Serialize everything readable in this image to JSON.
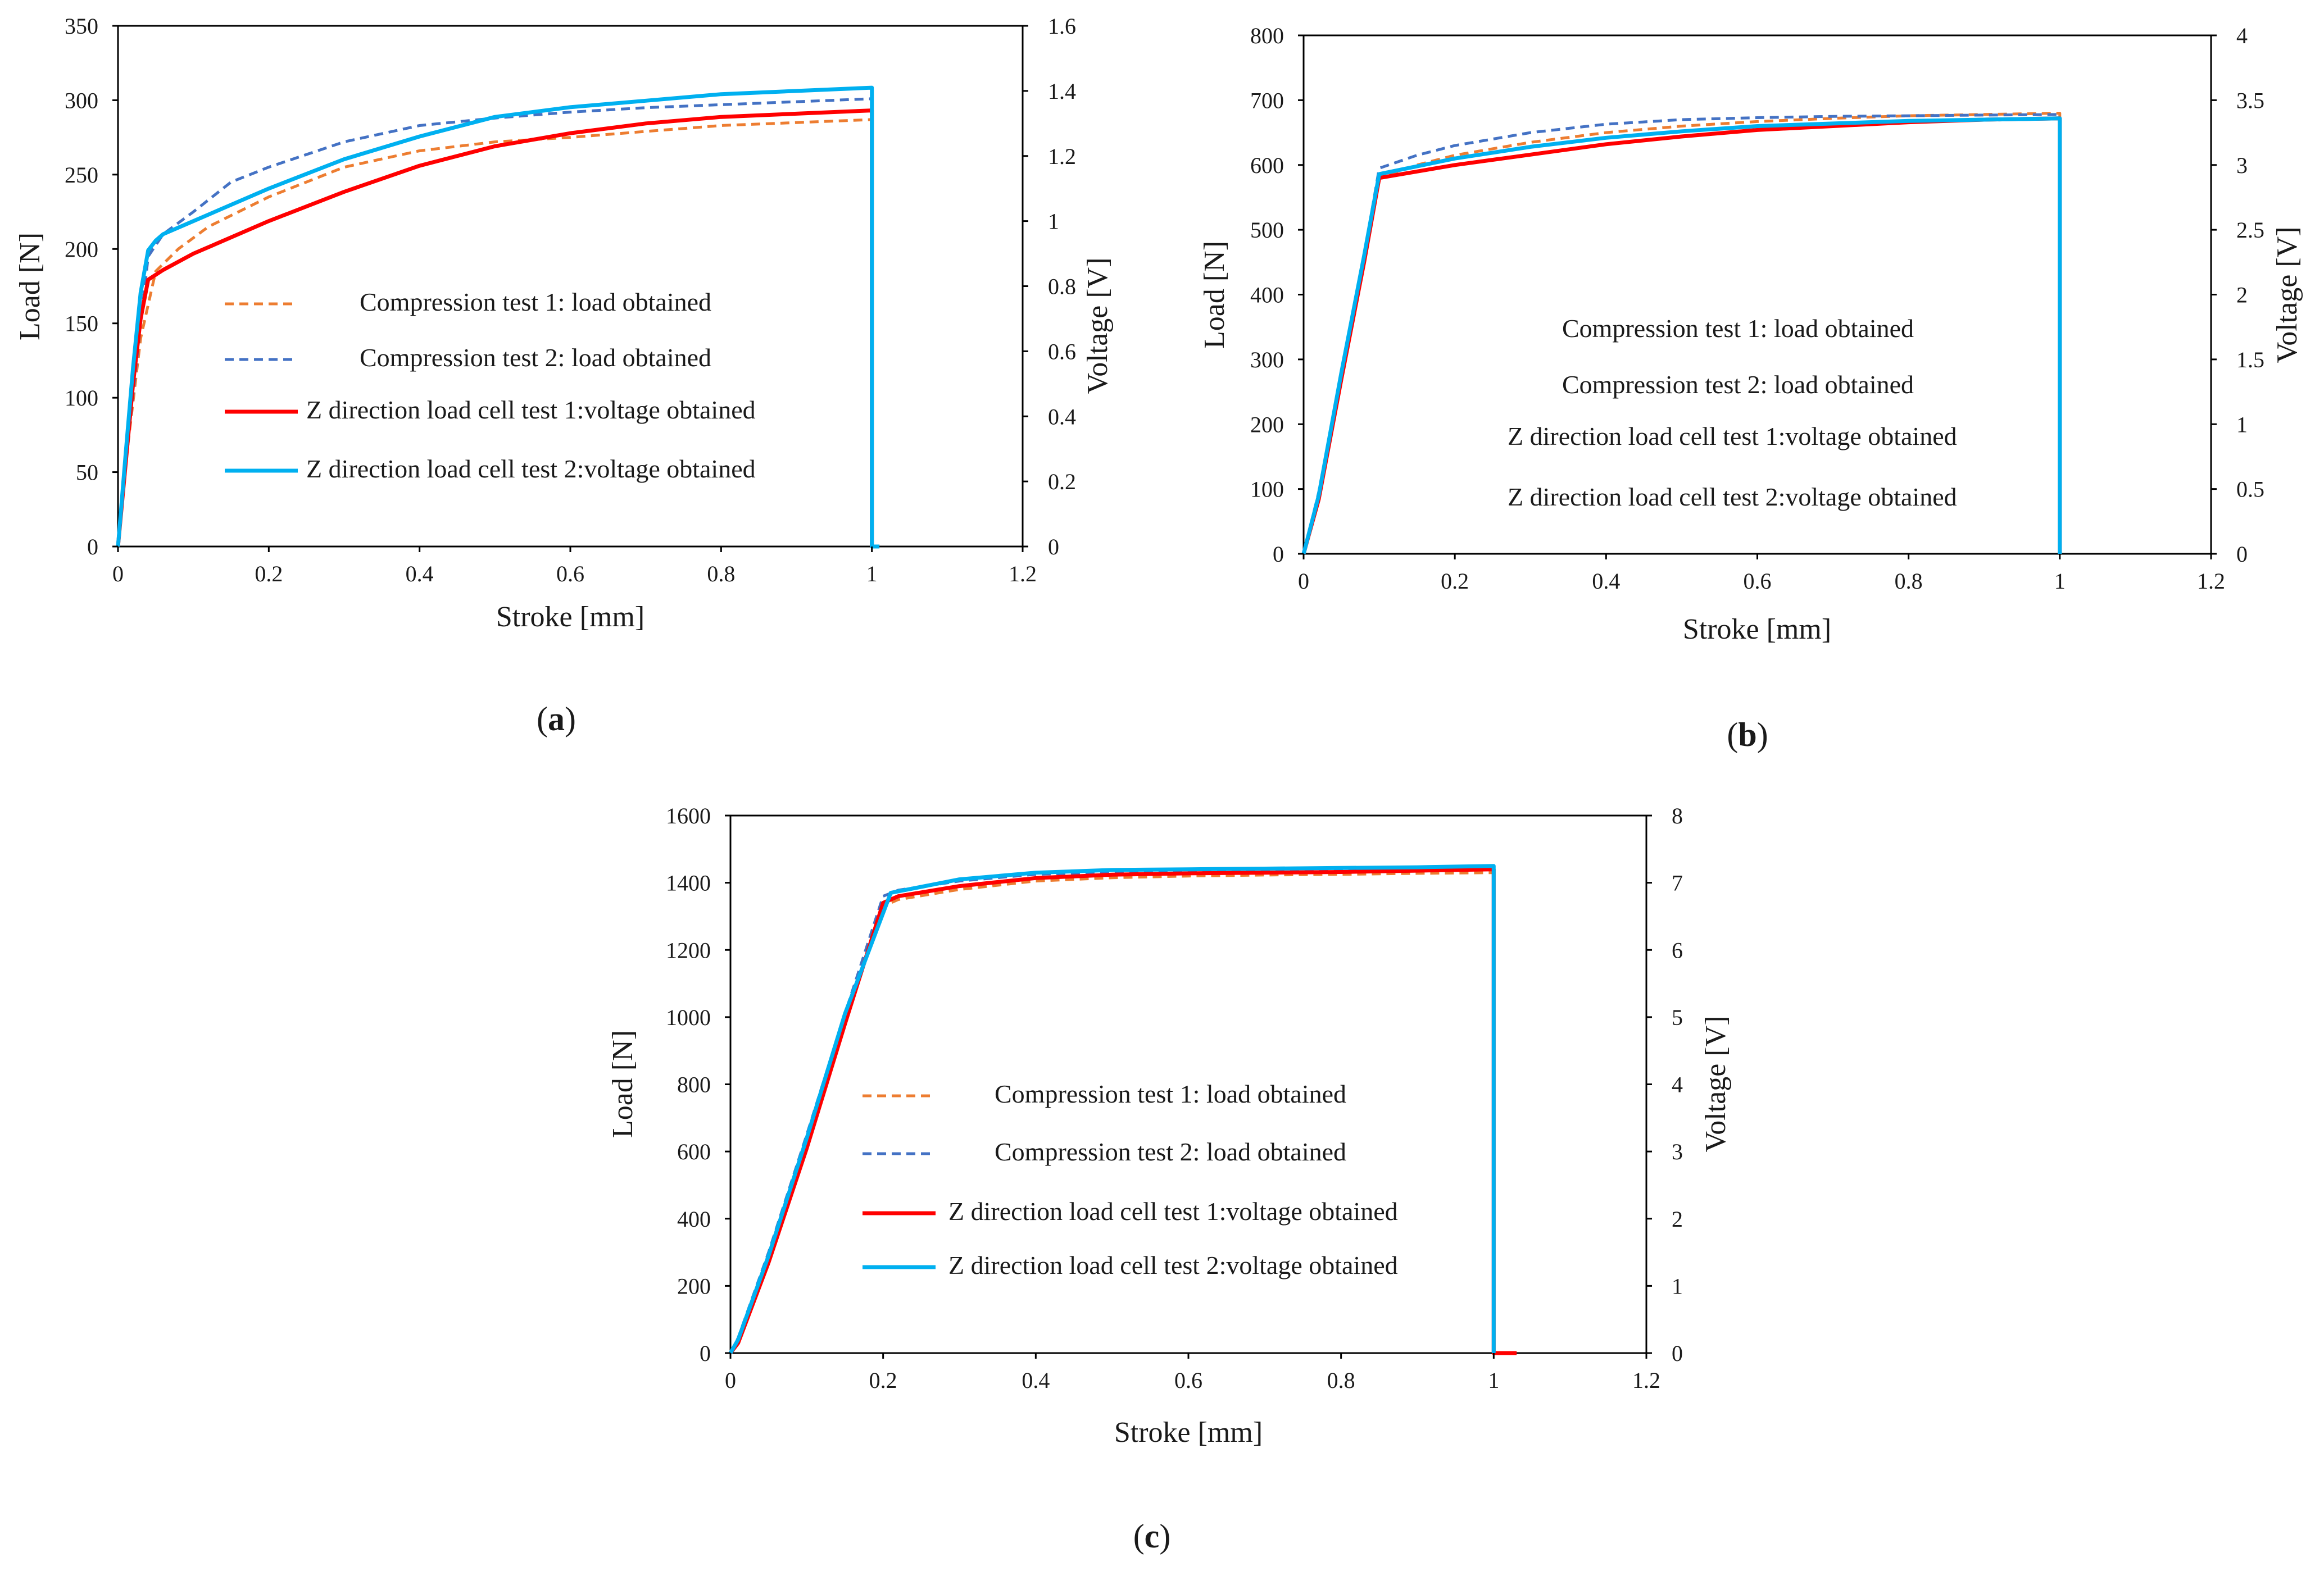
{
  "colors": {
    "compression_test_1": "#ED7D31",
    "compression_test_2": "#4472C4",
    "voltage_test_1": "#FF0000",
    "voltage_test_2": "#00B0F0",
    "axis": "#000000"
  },
  "chart_data": [
    {
      "id": "a",
      "panel_label": "a",
      "type": "line",
      "xlabel": "Stroke [mm]",
      "ylabel": "Load [N]",
      "y2label": "Voltage [V]",
      "xlim": [
        0,
        1.2
      ],
      "ylim": [
        0,
        350
      ],
      "y2lim": [
        0,
        1.6
      ],
      "xticks": [
        0,
        0.2,
        0.4,
        0.6,
        0.8,
        1,
        1.2
      ],
      "yticks": [
        0,
        50,
        100,
        150,
        200,
        250,
        300,
        350
      ],
      "y2ticks": [
        0,
        0.2,
        0.4,
        0.6,
        0.8,
        1,
        1.2,
        1.4,
        1.6
      ],
      "grid": false,
      "legend_position": "center-left",
      "series": [
        {
          "name": "Compression test 1: load obtained",
          "axis": "left",
          "style": "dashed",
          "color_key": "compression_test_1",
          "x": [
            0,
            0.01,
            0.03,
            0.05,
            0.08,
            0.12,
            0.2,
            0.3,
            0.4,
            0.5,
            0.6,
            0.7,
            0.8,
            0.9,
            1.0,
            1.0
          ],
          "y": [
            0,
            55,
            140,
            185,
            200,
            215,
            235,
            255,
            266,
            272,
            275,
            279,
            283,
            285,
            287,
            0
          ]
        },
        {
          "name": "Compression test 2: load obtained",
          "axis": "left",
          "style": "dashed",
          "color_key": "compression_test_2",
          "x": [
            0,
            0.01,
            0.03,
            0.04,
            0.06,
            0.1,
            0.15,
            0.2,
            0.3,
            0.4,
            0.5,
            0.6,
            0.7,
            0.8,
            0.9,
            1.0,
            1.0
          ],
          "y": [
            0,
            55,
            150,
            195,
            210,
            225,
            245,
            255,
            272,
            283,
            288,
            292,
            295,
            297,
            299,
            301,
            0
          ]
        },
        {
          "name": "Z direction load cell test 1:voltage obtained",
          "axis": "right",
          "style": "solid",
          "color_key": "voltage_test_1",
          "x": [
            0,
            0.01,
            0.02,
            0.03,
            0.04,
            0.06,
            0.1,
            0.2,
            0.3,
            0.4,
            0.5,
            0.6,
            0.7,
            0.8,
            0.9,
            1.0,
            1.0,
            1.01
          ],
          "y": [
            0,
            0.25,
            0.5,
            0.7,
            0.82,
            0.85,
            0.9,
            1.0,
            1.09,
            1.17,
            1.23,
            1.27,
            1.3,
            1.32,
            1.33,
            1.34,
            0,
            0
          ]
        },
        {
          "name": "Z direction load cell test 2:voltage obtained",
          "axis": "right",
          "style": "solid",
          "color_key": "voltage_test_2",
          "x": [
            0,
            0.01,
            0.02,
            0.03,
            0.04,
            0.05,
            0.06,
            0.1,
            0.2,
            0.3,
            0.4,
            0.5,
            0.6,
            0.7,
            0.8,
            0.9,
            1.0,
            1.0,
            1.01
          ],
          "y": [
            0,
            0.28,
            0.55,
            0.78,
            0.91,
            0.94,
            0.96,
            1.0,
            1.1,
            1.19,
            1.26,
            1.32,
            1.35,
            1.37,
            1.39,
            1.4,
            1.41,
            0,
            0
          ]
        }
      ]
    },
    {
      "id": "b",
      "panel_label": "b",
      "type": "line",
      "xlabel": "Stroke [mm]",
      "ylabel": "Load [N]",
      "y2label": "Voltage [V]",
      "xlim": [
        0,
        1.2
      ],
      "ylim": [
        0,
        800
      ],
      "y2lim": [
        0,
        4
      ],
      "xticks": [
        0,
        0.2,
        0.4,
        0.6,
        0.8,
        1,
        1.2
      ],
      "yticks": [
        0,
        100,
        200,
        300,
        400,
        500,
        600,
        700,
        800
      ],
      "y2ticks": [
        0,
        0.5,
        1,
        1.5,
        2,
        2.5,
        3,
        3.5,
        4
      ],
      "grid": false,
      "legend_position": "center",
      "series": [
        {
          "name": "Compression test 1: load obtained",
          "axis": "left",
          "style": "dashed",
          "color_key": "compression_test_1",
          "x": [
            0,
            0.02,
            0.05,
            0.08,
            0.1,
            0.15,
            0.2,
            0.3,
            0.4,
            0.5,
            0.6,
            0.7,
            0.8,
            0.9,
            1.0,
            1.0
          ],
          "y": [
            0,
            90,
            270,
            450,
            580,
            600,
            615,
            635,
            650,
            660,
            667,
            672,
            676,
            678,
            680,
            0
          ]
        },
        {
          "name": "Compression test 2: load obtained",
          "axis": "left",
          "style": "dashed",
          "color_key": "compression_test_2",
          "x": [
            0,
            0.02,
            0.05,
            0.08,
            0.1,
            0.15,
            0.2,
            0.3,
            0.4,
            0.5,
            0.6,
            0.7,
            0.8,
            0.9,
            1.0,
            1.0
          ],
          "y": [
            0,
            95,
            280,
            460,
            595,
            615,
            630,
            650,
            663,
            670,
            673,
            675,
            676,
            677,
            678,
            0
          ]
        },
        {
          "name": "Z direction load cell test 1:voltage obtained",
          "axis": "right",
          "style": "solid",
          "color_key": "voltage_test_1",
          "x": [
            0,
            0.02,
            0.05,
            0.08,
            0.1,
            0.15,
            0.2,
            0.3,
            0.4,
            0.5,
            0.6,
            0.7,
            0.8,
            0.9,
            1.0,
            1.0
          ],
          "y": [
            0,
            0.42,
            1.35,
            2.25,
            2.9,
            2.95,
            3.0,
            3.08,
            3.16,
            3.22,
            3.27,
            3.3,
            3.33,
            3.35,
            3.36,
            0
          ]
        },
        {
          "name": "Z direction load cell test 2:voltage obtained",
          "axis": "right",
          "style": "solid",
          "color_key": "voltage_test_2",
          "x": [
            0,
            0.02,
            0.05,
            0.08,
            0.1,
            0.15,
            0.2,
            0.3,
            0.4,
            0.5,
            0.6,
            0.7,
            0.8,
            0.9,
            1.0,
            1.0
          ],
          "y": [
            0,
            0.45,
            1.4,
            2.3,
            2.93,
            2.99,
            3.05,
            3.14,
            3.21,
            3.26,
            3.3,
            3.32,
            3.34,
            3.35,
            3.36,
            0
          ]
        }
      ]
    },
    {
      "id": "c",
      "panel_label": "c",
      "type": "line",
      "xlabel": "Stroke [mm]",
      "ylabel": "Load [N]",
      "y2label": "Voltage [V]",
      "xlim": [
        0,
        1.2
      ],
      "ylim": [
        0,
        1600
      ],
      "y2lim": [
        0,
        8
      ],
      "xticks": [
        0,
        0.2,
        0.4,
        0.6,
        0.8,
        1,
        1.2
      ],
      "yticks": [
        0,
        200,
        400,
        600,
        800,
        1000,
        1200,
        1400,
        1600
      ],
      "y2ticks": [
        0,
        1,
        2,
        3,
        4,
        5,
        6,
        7,
        8
      ],
      "grid": false,
      "legend_position": "lower-center",
      "series": [
        {
          "name": "Compression test 1: load obtained",
          "axis": "left",
          "style": "dashed",
          "color_key": "compression_test_1",
          "x": [
            0,
            0.01,
            0.05,
            0.1,
            0.15,
            0.2,
            0.22,
            0.3,
            0.4,
            0.5,
            0.6,
            0.7,
            0.8,
            0.9,
            1.0,
            1.0
          ],
          "y": [
            0,
            40,
            280,
            620,
            980,
            1330,
            1350,
            1380,
            1405,
            1415,
            1420,
            1423,
            1425,
            1428,
            1430,
            0
          ]
        },
        {
          "name": "Compression test 2: load obtained",
          "axis": "left",
          "style": "dashed",
          "color_key": "compression_test_2",
          "x": [
            0,
            0.01,
            0.05,
            0.1,
            0.15,
            0.2,
            0.22,
            0.3,
            0.4,
            0.5,
            0.6,
            0.7,
            0.8,
            0.9,
            1.0,
            1.0
          ],
          "y": [
            0,
            45,
            300,
            650,
            1010,
            1360,
            1378,
            1405,
            1425,
            1432,
            1435,
            1437,
            1440,
            1442,
            1445,
            0
          ]
        },
        {
          "name": "Z direction load cell test 1:voltage obtained",
          "axis": "right",
          "style": "solid",
          "color_key": "voltage_test_1",
          "x": [
            0,
            0.01,
            0.05,
            0.1,
            0.15,
            0.2,
            0.22,
            0.3,
            0.4,
            0.5,
            0.6,
            0.7,
            0.8,
            0.9,
            1.0,
            1.0,
            1.03
          ],
          "y": [
            0,
            0.15,
            1.35,
            3.05,
            4.9,
            6.7,
            6.8,
            6.95,
            7.07,
            7.12,
            7.14,
            7.15,
            7.16,
            7.18,
            7.2,
            0,
            0
          ]
        },
        {
          "name": "Z direction load cell test 2:voltage obtained",
          "axis": "right",
          "style": "solid",
          "color_key": "voltage_test_2",
          "x": [
            0,
            0.01,
            0.05,
            0.1,
            0.15,
            0.21,
            0.3,
            0.4,
            0.5,
            0.6,
            0.7,
            0.8,
            0.9,
            1.0,
            1.0
          ],
          "y": [
            0,
            0.2,
            1.45,
            3.2,
            5.05,
            6.85,
            7.05,
            7.15,
            7.19,
            7.2,
            7.21,
            7.22,
            7.23,
            7.25,
            0
          ]
        }
      ]
    }
  ]
}
